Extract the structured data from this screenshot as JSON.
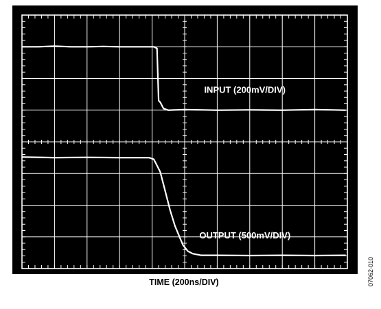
{
  "chart_data": {
    "type": "line",
    "title": "",
    "xlabel": "TIME (200ns/DIV)",
    "ylabel": "",
    "x_unit": "ns",
    "grid": true,
    "divisions": {
      "x": 10,
      "y": 8
    },
    "xlim": [
      0,
      2000
    ],
    "series": [
      {
        "name": "INPUT (200mV/DIV)",
        "y_scale": "200mV/DIV",
        "x": [
          0,
          100,
          200,
          300,
          400,
          500,
          600,
          700,
          780,
          810,
          830,
          840,
          850,
          870,
          900,
          1000,
          1200,
          1400,
          1600,
          1800,
          1990
        ],
        "y": [
          7.0,
          7.0,
          7.02,
          7.0,
          7.0,
          7.01,
          7.0,
          7.0,
          7.0,
          7.0,
          6.95,
          5.3,
          5.25,
          5.05,
          5.0,
          5.02,
          5.0,
          5.01,
          5.0,
          5.02,
          5.0
        ]
      },
      {
        "name": "OUTPUT (500mV/DIV)",
        "y_scale": "500mV/DIV",
        "x": [
          0,
          200,
          400,
          600,
          780,
          810,
          850,
          880,
          910,
          940,
          970,
          990,
          1020,
          1050,
          1100,
          1200,
          1400,
          1600,
          1800,
          1990
        ],
        "y": [
          3.52,
          3.5,
          3.51,
          3.5,
          3.5,
          3.45,
          3.05,
          2.45,
          1.85,
          1.35,
          0.98,
          0.74,
          0.55,
          0.47,
          0.42,
          0.42,
          0.41,
          0.42,
          0.41,
          0.42
        ]
      }
    ],
    "annotations": [
      {
        "text": "INPUT (200mV/DIV)",
        "x": 1120,
        "y": 5.55
      },
      {
        "text": "OUTPUT (500mV/DIV)",
        "x": 1090,
        "y": 0.95
      }
    ],
    "side_code": "07062-010",
    "colors": {
      "screen": "#000000",
      "trace": "#ffffff",
      "grid": "#ffffff",
      "text": "#000000"
    }
  }
}
